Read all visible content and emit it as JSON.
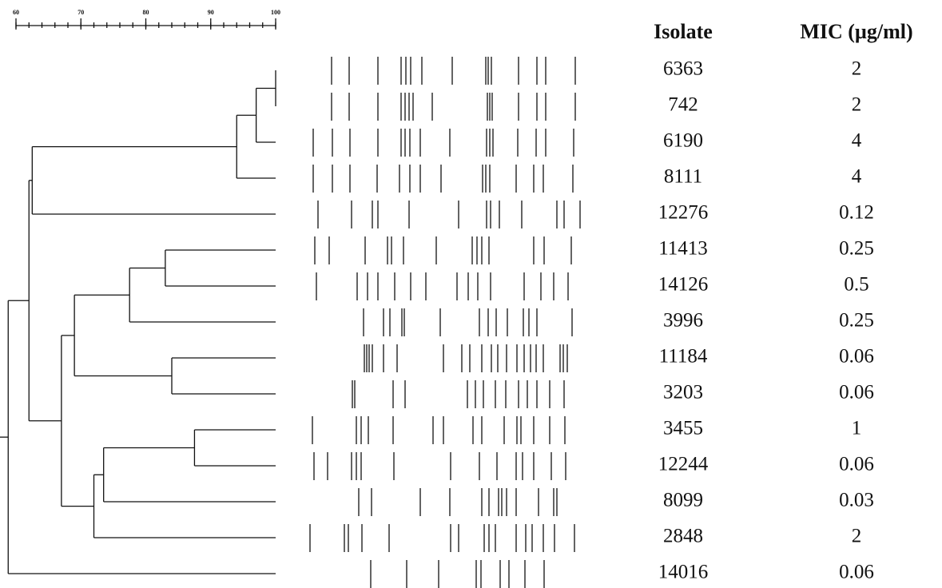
{
  "scale": {
    "xlim": [
      60,
      100
    ],
    "xticks": [
      60,
      70,
      80,
      90,
      100
    ]
  },
  "headers": {
    "isolate": "Isolate",
    "mic": "MIC (µg/ml)"
  },
  "tree": {
    "similarity": 58.8,
    "children": [
      {
        "similarity": 62,
        "children": [
          {
            "similarity": 62.5,
            "children": [
              {
                "similarity": 94,
                "children": [
                  {
                    "similarity": 97,
                    "children": [
                      {
                        "similarity": 100,
                        "children": [
                          {
                            "isolate": "6363",
                            "mic": "2"
                          },
                          {
                            "isolate": "742",
                            "mic": "2"
                          }
                        ]
                      },
                      {
                        "isolate": "6190",
                        "mic": "4"
                      }
                    ]
                  },
                  {
                    "isolate": "8111",
                    "mic": "4"
                  }
                ]
              },
              {
                "isolate": "12276",
                "mic": "0.12"
              }
            ]
          },
          {
            "similarity": 67,
            "children": [
              {
                "similarity": 69,
                "children": [
                  {
                    "similarity": 77.5,
                    "children": [
                      {
                        "similarity": 83,
                        "children": [
                          {
                            "isolate": "11413",
                            "mic": "0.25"
                          },
                          {
                            "isolate": "14126",
                            "mic": "0.5"
                          }
                        ]
                      },
                      {
                        "isolate": "3996",
                        "mic": "0.25"
                      }
                    ]
                  },
                  {
                    "similarity": 84,
                    "children": [
                      {
                        "isolate": "11184",
                        "mic": "0.06"
                      },
                      {
                        "isolate": "3203",
                        "mic": "0.06"
                      }
                    ]
                  }
                ]
              },
              {
                "similarity": 72,
                "children": [
                  {
                    "similarity": 73.5,
                    "children": [
                      {
                        "similarity": 87.5,
                        "children": [
                          {
                            "isolate": "3455",
                            "mic": "1"
                          },
                          {
                            "isolate": "12244",
                            "mic": "0.06"
                          }
                        ]
                      },
                      {
                        "isolate": "8099",
                        "mic": "0.03"
                      }
                    ]
                  },
                  {
                    "isolate": "2848",
                    "mic": "2"
                  }
                ]
              }
            ]
          }
        ]
      },
      {
        "isolate": "14016",
        "mic": "0.06"
      }
    ]
  }
}
